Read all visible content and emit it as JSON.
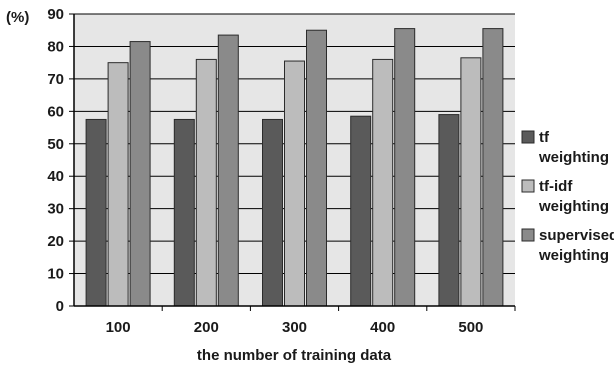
{
  "chart_data": {
    "type": "bar",
    "title": "",
    "xlabel": "the number of training data",
    "ylabel": "(%)",
    "ylim": [
      0,
      90
    ],
    "yticks": [
      0,
      10,
      20,
      30,
      40,
      50,
      60,
      70,
      80,
      90
    ],
    "grid": true,
    "legend_position": "right",
    "categories": [
      "100",
      "200",
      "300",
      "400",
      "500"
    ],
    "series": [
      {
        "name": "tf weighting",
        "name_lines": [
          "tf",
          "weighting"
        ],
        "color": "#5a5a5a",
        "values": [
          57.5,
          57.5,
          57.5,
          58.5,
          59
        ]
      },
      {
        "name": "tf-idf weighting",
        "name_lines": [
          "tf-idf",
          "weighting"
        ],
        "color": "#bcbcbc",
        "values": [
          75,
          76,
          75.5,
          76,
          76.5
        ]
      },
      {
        "name": "supervised weighting",
        "name_lines": [
          "supervised",
          "weighting"
        ],
        "color": "#8a8a8a",
        "values": [
          81.5,
          83.5,
          85,
          85.5,
          85.5
        ]
      }
    ],
    "plot_background": "#e6e6e6"
  }
}
